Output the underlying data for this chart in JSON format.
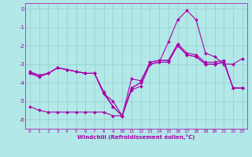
{
  "xlabel": "Windchill (Refroidissement éolien,°C)",
  "background_color": "#b2e8e8",
  "line_color": "#aa00aa",
  "grid_color": "#99cccc",
  "xlim": [
    -0.5,
    23.5
  ],
  "ylim": [
    -6.5,
    0.3
  ],
  "yticks": [
    0,
    -1,
    -2,
    -3,
    -4,
    -5,
    -6
  ],
  "xticks": [
    0,
    1,
    2,
    3,
    4,
    5,
    6,
    7,
    8,
    9,
    10,
    11,
    12,
    13,
    14,
    15,
    16,
    17,
    18,
    19,
    20,
    21,
    22,
    23
  ],
  "series": [
    [
      -5.3,
      -5.5,
      -5.6,
      -5.6,
      -5.6,
      -5.6,
      -5.6,
      -5.6,
      -5.6,
      -5.8,
      -5.8,
      -3.8,
      -3.9,
      -3.0,
      -2.9,
      -1.8,
      -0.6,
      -0.1,
      -0.6,
      -2.4,
      -2.6,
      -3.0,
      -3.0,
      -2.7
    ],
    [
      -3.5,
      -3.7,
      -3.5,
      -3.2,
      -3.3,
      -3.4,
      -3.5,
      -3.5,
      -4.5,
      -5.3,
      -5.8,
      -4.4,
      -4.2,
      -3.0,
      -2.9,
      -2.9,
      -2.0,
      -2.5,
      -2.6,
      -3.0,
      -3.0,
      -2.9,
      -4.3,
      -4.3
    ],
    [
      -3.4,
      -3.6,
      -3.5,
      -3.2,
      -3.3,
      -3.4,
      -3.5,
      -3.5,
      -4.6,
      -5.3,
      -5.8,
      -4.3,
      -4.0,
      -2.9,
      -2.8,
      -2.8,
      -1.9,
      -2.4,
      -2.5,
      -2.9,
      -2.9,
      -2.8,
      -4.3,
      -4.3
    ],
    [
      -3.5,
      -3.6,
      -3.5,
      -3.2,
      -3.3,
      -3.4,
      -3.5,
      -3.5,
      -4.6,
      -5.0,
      -5.8,
      -4.3,
      -4.0,
      -2.9,
      -2.8,
      -2.8,
      -2.0,
      -2.5,
      -2.6,
      -3.0,
      -3.0,
      -2.9,
      -4.3,
      -4.3
    ]
  ],
  "marker": "D",
  "markersize": 2.0,
  "linewidth": 0.8,
  "tick_fontsize": 4.5,
  "xlabel_fontsize": 5.0
}
